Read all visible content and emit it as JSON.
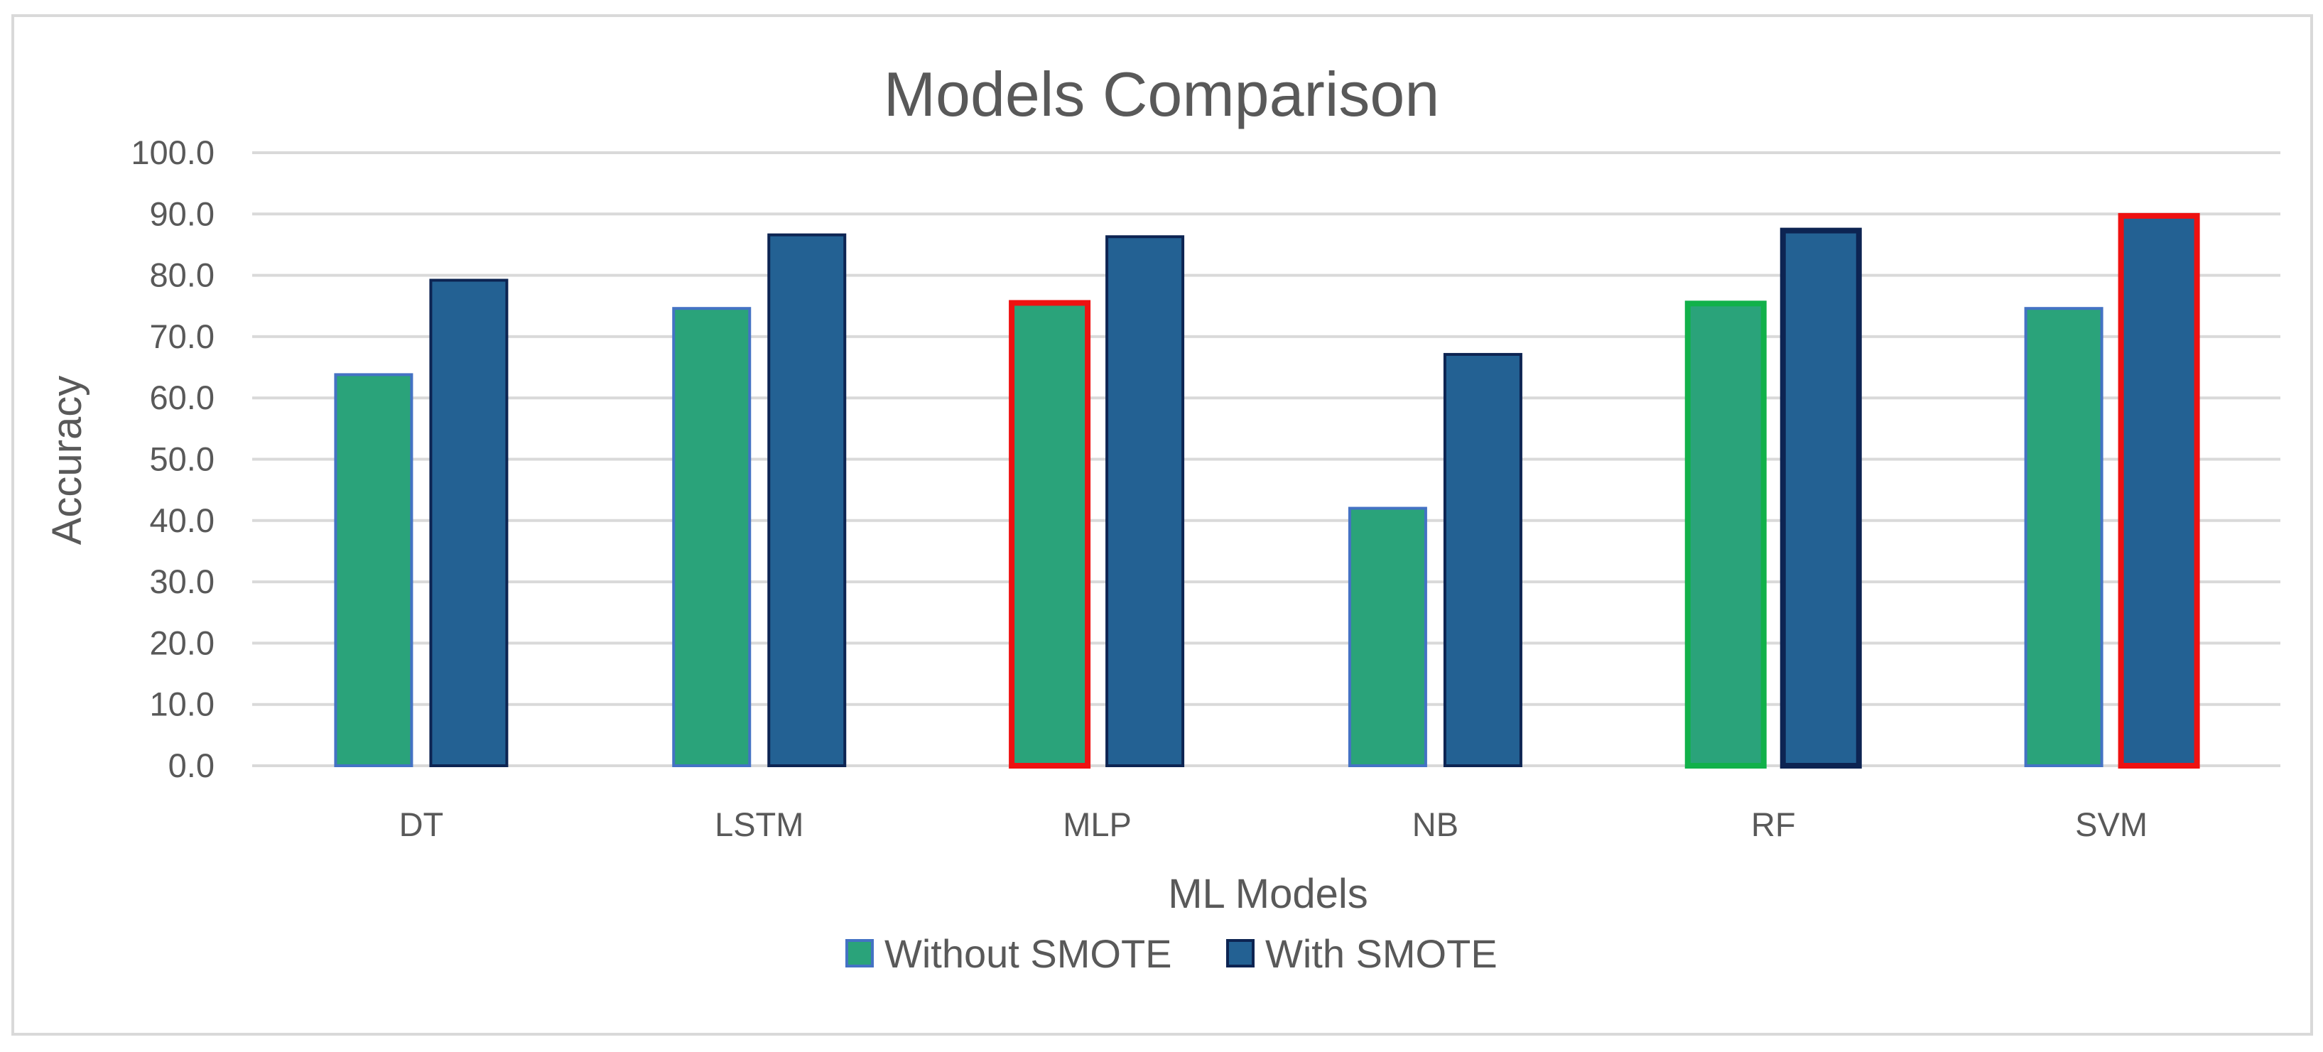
{
  "chart_data": {
    "type": "bar",
    "title": "Models Comparison",
    "xlabel": "ML Models",
    "ylabel": "Accuracy",
    "ylim": [
      0,
      100
    ],
    "yticks": [
      "0.0",
      "10.0",
      "20.0",
      "30.0",
      "40.0",
      "50.0",
      "60.0",
      "70.0",
      "80.0",
      "90.0",
      "100.0"
    ],
    "categories": [
      "DT",
      "LSTM",
      "MLP",
      "NB",
      "RF",
      "SVM"
    ],
    "series": [
      {
        "name": "Without SMOTE",
        "color": "#2aa37a",
        "edge": "#4472c4",
        "values": [
          63.8,
          74.6,
          75.5,
          42.0,
          75.4,
          74.6
        ],
        "highlight": [
          null,
          null,
          "#ee1111",
          null,
          "#11b14a",
          null
        ]
      },
      {
        "name": "With SMOTE",
        "color": "#236193",
        "edge": "#0d2452",
        "values": [
          79.2,
          86.6,
          86.3,
          67.1,
          87.3,
          89.7
        ],
        "highlight": [
          null,
          null,
          null,
          null,
          "#0d2452",
          "#ee1111"
        ]
      }
    ],
    "legend": "bottom",
    "grid": true
  }
}
